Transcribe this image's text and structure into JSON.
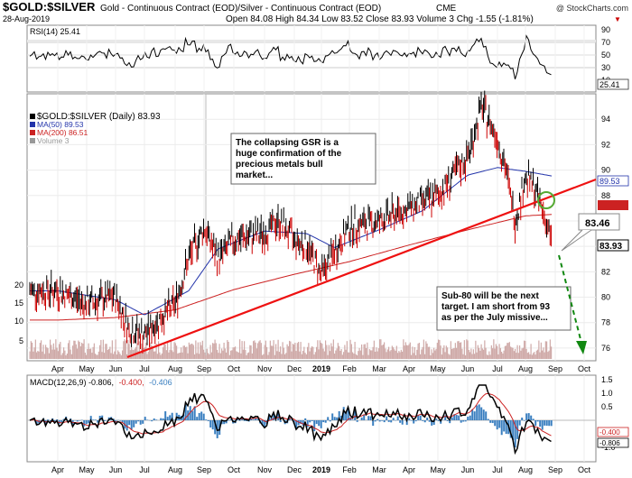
{
  "header": {
    "symbol": "$GOLD:$SILVER",
    "description": "Gold - Continuous Contract (EOD)/Silver - Continuous Contract (EOD)",
    "exchange": "CME",
    "watermark": "@ StockCharts.com",
    "date": "28-Aug-2019",
    "quote": "Open 84.08  High 84.34  Low 83.52  Close 83.93  Volume 3  Chg -1.55 (-1.81%)",
    "chg_arrow": "▼"
  },
  "colors": {
    "price": "#000000",
    "price_down": "#cc0000",
    "ma50": "#2233aa",
    "ma200": "#cc2222",
    "trendline": "#ee1111",
    "volume": "#cfaaa8",
    "macd_hist": "#3a7fc0",
    "rsi_line": "#000000",
    "annotation_arrow": "#118811",
    "circle": "#55aa33"
  },
  "rsi_panel": {
    "label": "RSI(14) 25.41",
    "tag_value": "25.41",
    "scale": [
      "90",
      "70",
      "50",
      "30",
      "10"
    ]
  },
  "main_panel": {
    "legend": [
      {
        "label": "$GOLD:$SILVER (Daily) 83.93",
        "color": "#000000"
      },
      {
        "label": "MA(50) 89.53",
        "color": "#2233aa"
      },
      {
        "label": "MA(200) 86.51",
        "color": "#cc2222"
      },
      {
        "label": "Volume 3",
        "color": "#999999"
      }
    ],
    "right_scale": [
      "94",
      "92",
      "90",
      "88",
      "86",
      "84",
      "82",
      "80",
      "78",
      "76"
    ],
    "left_scale": [
      "20",
      "15",
      "10",
      "5"
    ],
    "tag_ma50": "89.53",
    "tag_price": "83.93",
    "callout_value": "83.46",
    "note_top": "The collapsing GSR is a huge confirmation of the precious metals bull market...",
    "note_bottom": "Sub-80 will be the next target. I am short from 93 as per the July missive..."
  },
  "macd_panel": {
    "label_prefix": "MACD(12,26,9) -0.806,",
    "label_signal": "-0.400,",
    "label_hist": "-0.406",
    "scale": [
      "1.5",
      "1.0",
      "0.5",
      "-0.5",
      "-1.0"
    ],
    "tag_signal": "-0.400",
    "tag_macd": "-0.806"
  },
  "x_axis": {
    "labels": [
      "Apr",
      "May",
      "Jun",
      "Jul",
      "Aug",
      "Sep",
      "Oct",
      "Nov",
      "Dec",
      "2019",
      "Feb",
      "Mar",
      "Apr",
      "May",
      "Jun",
      "Jul",
      "Aug",
      "Sep",
      "Oct"
    ]
  },
  "chart_data": {
    "type": "line",
    "title": "$GOLD:$SILVER",
    "x_range": [
      "Mar-2018",
      "Oct-2019"
    ],
    "y_range_main": [
      75,
      96
    ],
    "series": [
      {
        "name": "$GOLD:$SILVER",
        "x": [
          "2018-04-01",
          "2018-05-01",
          "2018-06-01",
          "2018-06-15",
          "2018-07-01",
          "2018-08-01",
          "2018-08-15",
          "2018-09-01",
          "2018-09-15",
          "2018-10-01",
          "2018-11-01",
          "2018-11-15",
          "2018-12-01",
          "2018-12-15",
          "2019-01-01",
          "2019-02-01",
          "2019-03-01",
          "2019-04-01",
          "2019-05-01",
          "2019-06-01",
          "2019-06-15",
          "2019-07-01",
          "2019-07-10",
          "2019-07-20",
          "2019-08-01",
          "2019-08-10",
          "2019-08-20",
          "2019-08-28"
        ],
        "values": [
          80.5,
          79.5,
          80.0,
          77.5,
          77.0,
          79.5,
          83.0,
          85.5,
          83.0,
          84.5,
          85.0,
          86.0,
          84.5,
          84.0,
          81.8,
          85.5,
          86.0,
          87.0,
          88.0,
          91.0,
          95.0,
          92.5,
          90.0,
          86.0,
          89.5,
          88.5,
          86.5,
          83.93
        ]
      },
      {
        "name": "MA(50)",
        "x": [
          "2018-04-01",
          "2018-06-01",
          "2018-07-01",
          "2018-08-15",
          "2018-09-15",
          "2018-11-01",
          "2018-12-15",
          "2019-01-15",
          "2019-03-01",
          "2019-04-15",
          "2019-06-01",
          "2019-07-01",
          "2019-08-01",
          "2019-08-28"
        ],
        "values": [
          80.5,
          79.8,
          78.6,
          80.5,
          83.8,
          85.2,
          85.0,
          83.9,
          85.3,
          86.8,
          89.6,
          90.2,
          89.9,
          89.53
        ]
      },
      {
        "name": "MA(200)",
        "x": [
          "2018-04-01",
          "2018-06-01",
          "2018-08-01",
          "2018-10-01",
          "2018-12-01",
          "2019-02-01",
          "2019-04-01",
          "2019-06-01",
          "2019-08-01",
          "2019-08-28"
        ],
        "values": [
          78.2,
          78.4,
          79.0,
          80.6,
          81.8,
          82.8,
          84.1,
          85.3,
          86.4,
          86.51
        ]
      }
    ],
    "annotations": [
      {
        "text": "The collapsing GSR is a huge confirmation of the precious metals bull market..."
      },
      {
        "text": "Sub-80 will be the next target. I am short from 93 as per the July missive..."
      },
      {
        "text": "83.46"
      }
    ],
    "rsi": {
      "last": 25.41,
      "levels": [
        30,
        70
      ]
    },
    "macd": {
      "macd": -0.806,
      "signal": -0.4,
      "hist": -0.406
    }
  }
}
